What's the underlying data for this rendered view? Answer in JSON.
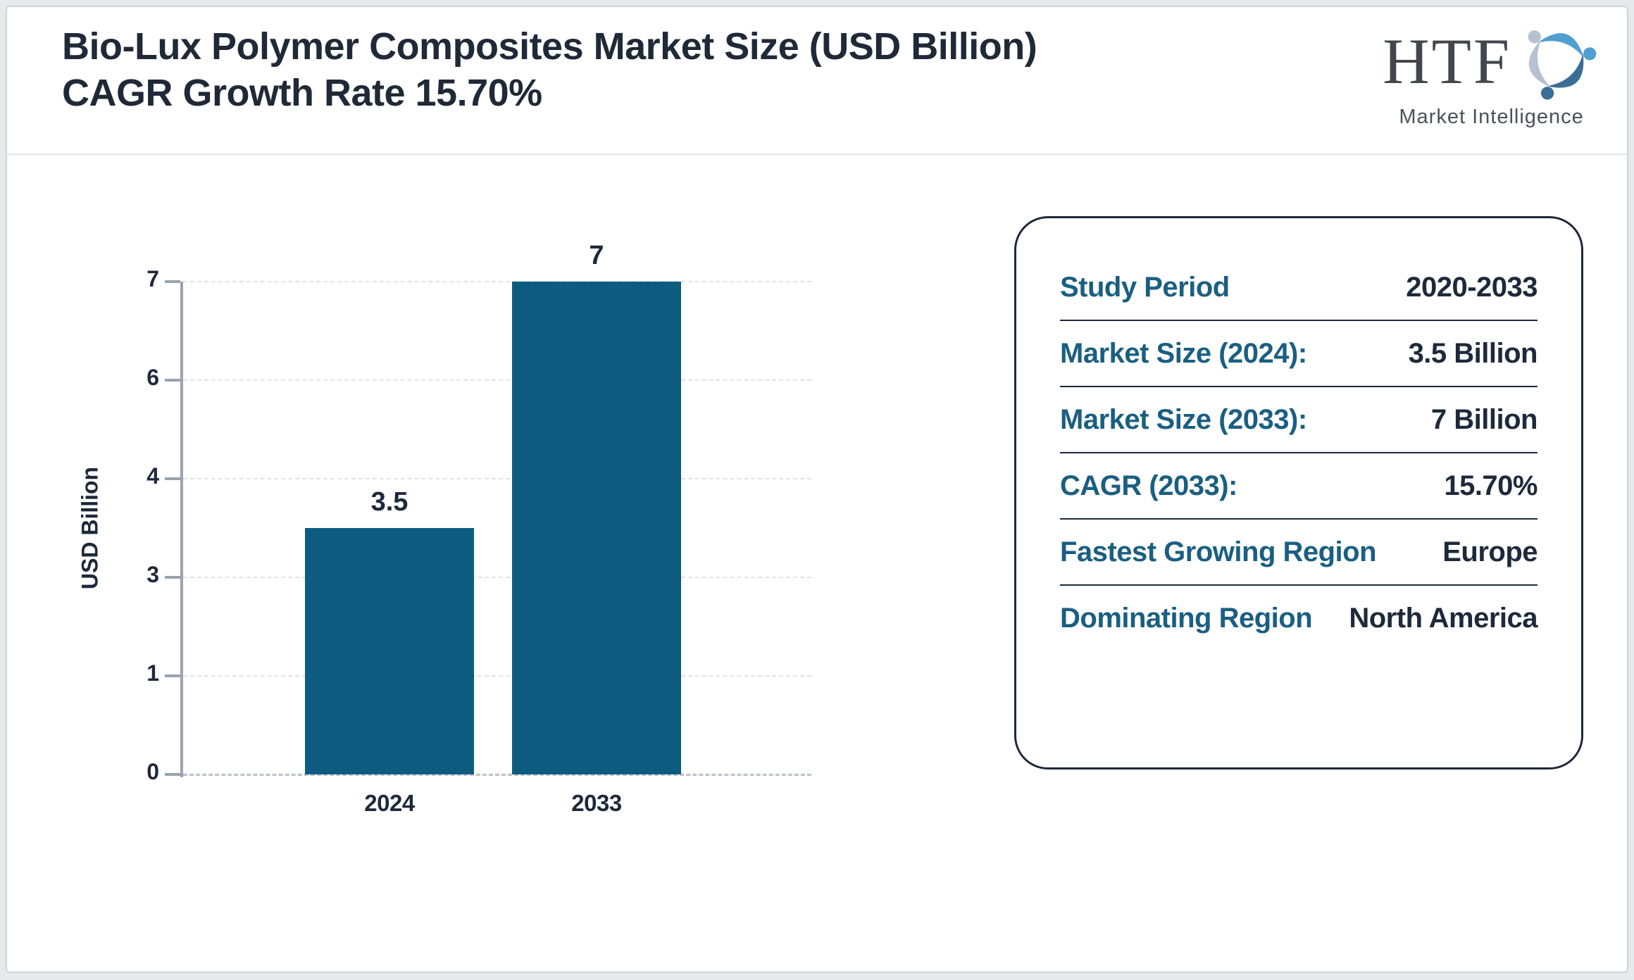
{
  "header": {
    "title": "Bio-Lux Polymer Composites Market Size (USD Billion) CAGR Growth Rate 15.70%"
  },
  "logo": {
    "text": "HTF",
    "subtext": "Market Intelligence",
    "swirl_colors": [
      "#4fa0d2",
      "#3a6e96",
      "#b6c2d1"
    ]
  },
  "chart_data": {
    "type": "bar",
    "title": "Bio-Lux Polymer Composites Market Size (USD Billion) CAGR Growth Rate 15.70%",
    "categories": [
      "2024",
      "2033"
    ],
    "values": [
      3.5,
      7
    ],
    "value_labels": [
      "3.5",
      "7"
    ],
    "xlabel": "",
    "ylabel": "USD Billion",
    "yticks": [
      0,
      1,
      3,
      4,
      6,
      7
    ],
    "ylim": [
      0,
      7
    ],
    "grid": "horizontal-dashed",
    "legend": "none",
    "bar_color": "#0d5c80"
  },
  "info_card": {
    "rows": [
      {
        "label": "Study Period",
        "value": "2020-2033"
      },
      {
        "label": "Market Size (2024):",
        "value": "3.5 Billion"
      },
      {
        "label": "Market Size (2033):",
        "value": "7 Billion"
      },
      {
        "label": "CAGR (2033):",
        "value": "15.70%"
      },
      {
        "label": "Fastest Growing Region",
        "value": "Europe"
      },
      {
        "label": "Dominating Region",
        "value": "North America"
      }
    ],
    "label_color": "#1a5f82",
    "value_color": "#1e293b"
  },
  "colors": {
    "title": "#1f2937",
    "axis": "#9aa3ad",
    "page_bg": "#e7e9ec"
  }
}
